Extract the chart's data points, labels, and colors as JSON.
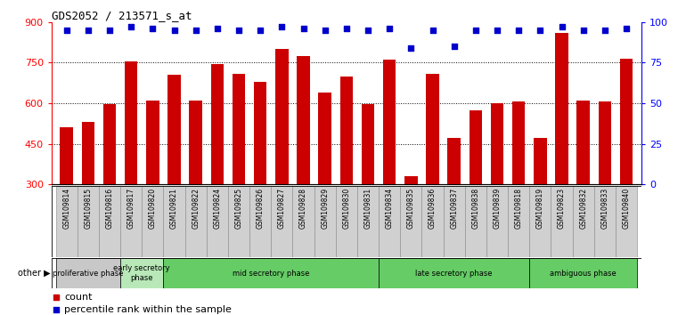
{
  "title": "GDS2052 / 213571_s_at",
  "samples": [
    "GSM109814",
    "GSM109815",
    "GSM109816",
    "GSM109817",
    "GSM109820",
    "GSM109821",
    "GSM109822",
    "GSM109824",
    "GSM109825",
    "GSM109826",
    "GSM109827",
    "GSM109828",
    "GSM109829",
    "GSM109830",
    "GSM109831",
    "GSM109834",
    "GSM109835",
    "GSM109836",
    "GSM109837",
    "GSM109838",
    "GSM109839",
    "GSM109818",
    "GSM109819",
    "GSM109823",
    "GSM109832",
    "GSM109833",
    "GSM109840"
  ],
  "counts": [
    510,
    530,
    595,
    755,
    610,
    705,
    610,
    745,
    710,
    680,
    800,
    775,
    640,
    700,
    595,
    760,
    330,
    710,
    470,
    575,
    600,
    605,
    470,
    860,
    610,
    605,
    765
  ],
  "percentiles": [
    95,
    95,
    95,
    97,
    96,
    95,
    95,
    96,
    95,
    95,
    97,
    96,
    95,
    96,
    95,
    96,
    84,
    95,
    85,
    95,
    95,
    95,
    95,
    97,
    95,
    95,
    96
  ],
  "bar_color": "#cc0000",
  "dot_color": "#0000cc",
  "ylim_left": [
    300,
    900
  ],
  "yticks_left": [
    300,
    450,
    600,
    750,
    900
  ],
  "yticks_right": [
    0,
    25,
    50,
    75,
    100
  ],
  "phases": [
    {
      "label": "proliferative phase",
      "start": 0,
      "end": 3,
      "color": "#c8c8c8"
    },
    {
      "label": "early secretory\nphase",
      "start": 3,
      "end": 5,
      "color": "#b8e8b8"
    },
    {
      "label": "mid secretory phase",
      "start": 5,
      "end": 15,
      "color": "#66cc66"
    },
    {
      "label": "late secretory phase",
      "start": 15,
      "end": 22,
      "color": "#66cc66"
    },
    {
      "label": "ambiguous phase",
      "start": 22,
      "end": 27,
      "color": "#66cc66"
    }
  ],
  "legend_count_label": "count",
  "legend_pct_label": "percentile rank within the sample",
  "background_color": "#ffffff"
}
